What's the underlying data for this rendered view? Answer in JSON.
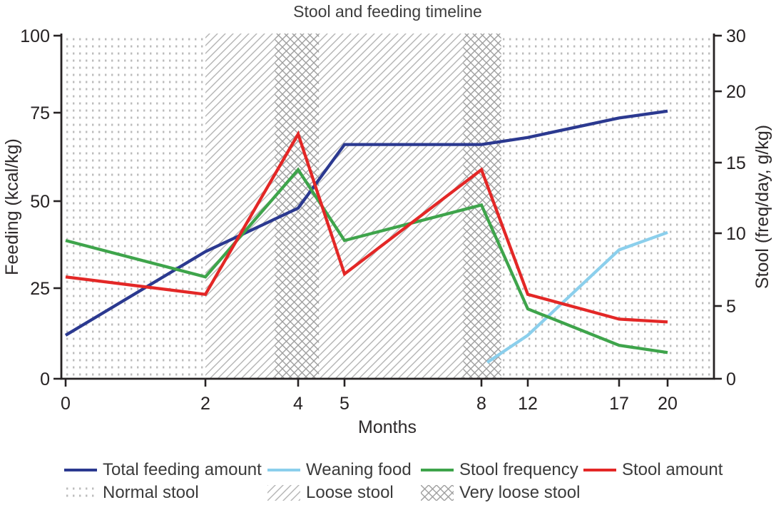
{
  "figure": {
    "title": "Stool and feeding timeline"
  },
  "chart_data": {
    "type": "line",
    "title": "Stool and feeding timeline",
    "xlabel": "Months",
    "ylabel_left": "Feeding (kcal/kg)",
    "ylabel_right": "Stool (freq/day, g/kg)",
    "x_unit": "months",
    "x_ticks": [
      0,
      2,
      4,
      5,
      8,
      12,
      17,
      20
    ],
    "left_axis": {
      "label": "Feeding (kcal/kg)",
      "ticks": [
        0,
        25,
        50,
        75,
        100
      ],
      "range": [
        0,
        100
      ]
    },
    "right_axis": {
      "label": "Stool (freq/day, g/kg)",
      "ticks": [
        0,
        5,
        10,
        15,
        20,
        30
      ],
      "range": [
        0,
        30
      ]
    },
    "grid": false,
    "legend_position": "bottom",
    "series": [
      {
        "name": "Total feeding amount",
        "axis": "left",
        "color": "#2b3990",
        "points": [
          [
            0,
            12
          ],
          [
            2,
            35.5
          ],
          [
            4,
            48
          ],
          [
            5,
            66
          ],
          [
            8,
            66
          ],
          [
            12,
            68
          ],
          [
            17,
            73.5
          ],
          [
            20,
            75.5
          ]
        ]
      },
      {
        "name": "Weaning food",
        "axis": "left",
        "color": "#8bcfec",
        "points": [
          [
            8.5,
            4.5
          ],
          [
            12,
            12
          ],
          [
            17,
            36
          ],
          [
            20,
            41
          ]
        ]
      },
      {
        "name": "Stool frequency",
        "axis": "right",
        "color": "#3ea44b",
        "points": [
          [
            0,
            9.5
          ],
          [
            2,
            7
          ],
          [
            4,
            14.5
          ],
          [
            5,
            9.5
          ],
          [
            8,
            12
          ],
          [
            12,
            4.8
          ],
          [
            17,
            2.3
          ],
          [
            20,
            1.8
          ]
        ]
      },
      {
        "name": "Stool amount",
        "axis": "right",
        "color": "#e32726",
        "points": [
          [
            0,
            7
          ],
          [
            2,
            5.8
          ],
          [
            4,
            17
          ],
          [
            5,
            7.2
          ],
          [
            8,
            14.5
          ],
          [
            12,
            5.8
          ],
          [
            17,
            4.1
          ],
          [
            20,
            3.9
          ]
        ]
      }
    ],
    "bands": [
      {
        "label": "Normal stool",
        "pattern": "dots",
        "from_month": -0.3,
        "to_month": 2
      },
      {
        "label": "Loose stool",
        "pattern": "diag",
        "from_month": 2,
        "to_month": 3.5
      },
      {
        "label": "Very loose stool",
        "pattern": "cross",
        "from_month": 3.5,
        "to_month": 4.45
      },
      {
        "label": "Loose stool",
        "pattern": "diag",
        "from_month": 4.45,
        "to_month": 7.6
      },
      {
        "label": "Very loose stool",
        "pattern": "cross",
        "from_month": 7.6,
        "to_month": 9.7
      },
      {
        "label": "Normal stool",
        "pattern": "dots",
        "from_month": 9.7,
        "to_month": 23
      }
    ],
    "legend_patterns": [
      {
        "label": "Normal stool",
        "pattern": "dots"
      },
      {
        "label": "Loose stool",
        "pattern": "diag"
      },
      {
        "label": "Very loose stool",
        "pattern": "cross"
      }
    ]
  }
}
